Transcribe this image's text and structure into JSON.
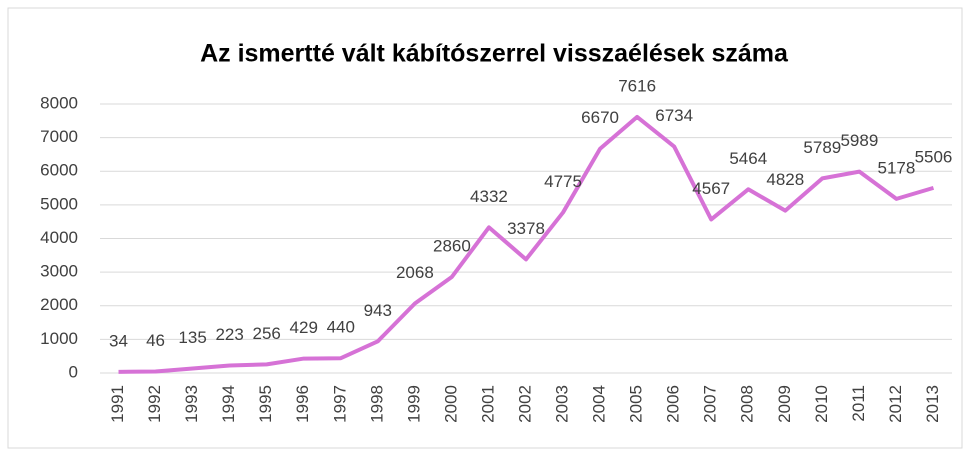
{
  "chart_data": {
    "type": "line",
    "title": "Az ismertté vált kábítószerrel visszaélések száma",
    "categories": [
      "1991",
      "1992",
      "1993",
      "1994",
      "1995",
      "1996",
      "1997",
      "1998",
      "1999",
      "2000",
      "2001",
      "2002",
      "2003",
      "2004",
      "2005",
      "2006",
      "2007",
      "2008",
      "2009",
      "2010",
      "2011",
      "2012",
      "2013"
    ],
    "values": [
      34,
      46,
      135,
      223,
      256,
      429,
      440,
      943,
      2068,
      2860,
      4332,
      3378,
      4775,
      6670,
      7616,
      6734,
      4567,
      5464,
      4828,
      5789,
      5989,
      5178,
      5506
    ],
    "color": "#d672d6",
    "ylim": [
      0,
      8000
    ],
    "yticks": [
      0,
      1000,
      2000,
      3000,
      4000,
      5000,
      6000,
      7000,
      8000
    ],
    "grid": true
  }
}
